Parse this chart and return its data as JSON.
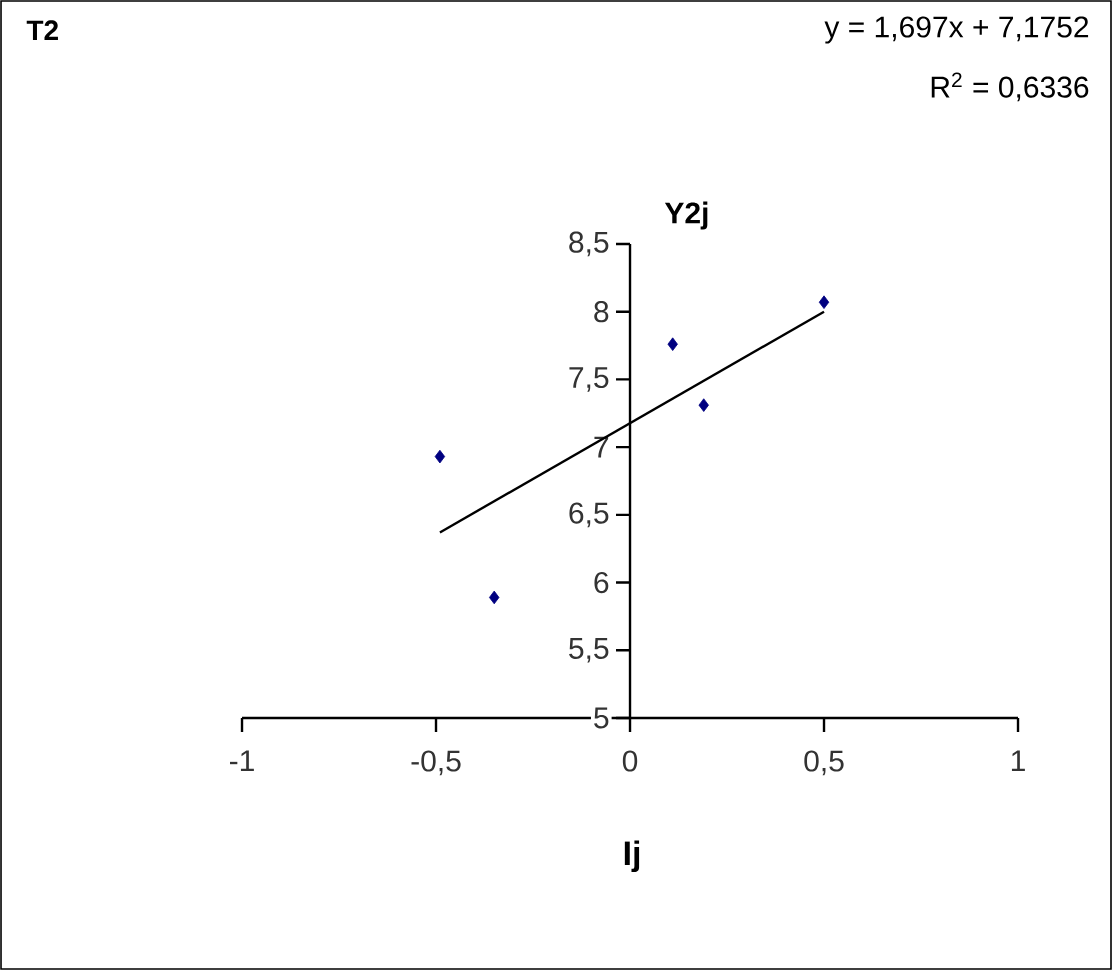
{
  "chart_data": {
    "type": "scatter",
    "title": "T2",
    "xlabel": "Ij",
    "ylabel": "Y2j",
    "annotations": [
      "y = 1,697x + 7,1752",
      "R$^{2}$ = 0,6336"
    ],
    "xlim": [
      -1,
      1
    ],
    "ylim": [
      5,
      8.5
    ],
    "xticks": [
      -1,
      {
        "value": -0.5,
        "label": "-0,5"
      },
      0,
      {
        "value": 0.5,
        "label": "0,5"
      },
      1
    ],
    "yticks": [
      5,
      {
        "value": 5.5,
        "label": "5,5"
      },
      6,
      {
        "value": 6.5,
        "label": "6,5"
      },
      7,
      {
        "value": 7.5,
        "label": "7,5"
      },
      8,
      {
        "value": 8.5,
        "label": "8,5"
      }
    ],
    "marker": "diamond",
    "series": [
      {
        "type": "scatter",
        "color": "#000080",
        "x": [
          -0.49,
          -0.35,
          0.11,
          0.19,
          0.5
        ],
        "values": [
          6.93,
          5.89,
          7.76,
          7.31,
          8.07
        ]
      },
      {
        "type": "line",
        "color": "#000000",
        "marker": "none",
        "x": [
          -0.49,
          0.5
        ],
        "values": [
          6.37,
          8.0
        ]
      }
    ]
  }
}
